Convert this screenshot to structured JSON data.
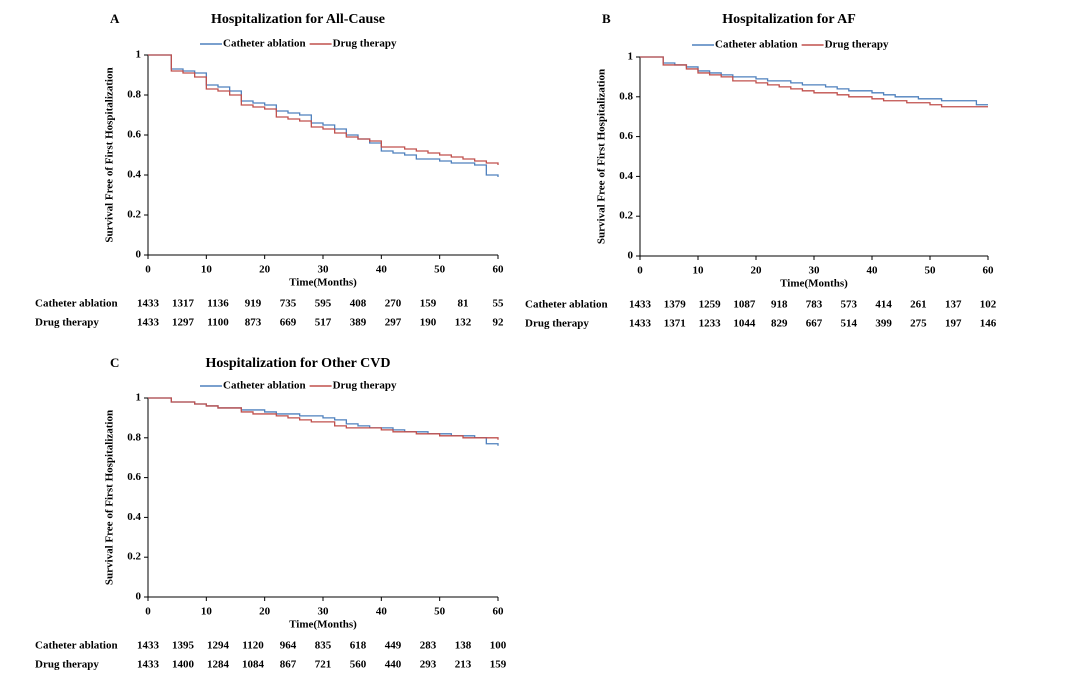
{
  "chart_data": [
    {
      "type": "line",
      "step": true,
      "panel": "A",
      "title": "Hospitalization for All-Cause",
      "x_label": "Time(Months)",
      "y_label": "Survival Free of First Hospitalization",
      "xlim": [
        0,
        60
      ],
      "xticks": [
        0,
        10,
        20,
        30,
        40,
        50,
        60
      ],
      "ylim": [
        0,
        1
      ],
      "yticks": [
        0,
        0.2,
        0.4,
        0.6,
        0.8,
        1
      ],
      "x": [
        0,
        2,
        4,
        6,
        8,
        10,
        12,
        14,
        16,
        18,
        20,
        22,
        24,
        26,
        28,
        30,
        32,
        34,
        36,
        38,
        40,
        42,
        44,
        46,
        48,
        50,
        52,
        54,
        56,
        58,
        60
      ],
      "series": [
        {
          "name": "Catheter ablation",
          "color": "#4f81bd",
          "table_color": "#1f4e8c",
          "values": [
            1,
            1,
            0.93,
            0.92,
            0.91,
            0.85,
            0.84,
            0.82,
            0.77,
            0.76,
            0.75,
            0.72,
            0.71,
            0.7,
            0.66,
            0.65,
            0.63,
            0.6,
            0.58,
            0.56,
            0.52,
            0.51,
            0.5,
            0.48,
            0.48,
            0.47,
            0.46,
            0.46,
            0.45,
            0.4,
            0.39
          ],
          "at_risk": [
            1433,
            1317,
            1136,
            919,
            735,
            595,
            408,
            270,
            159,
            81,
            55
          ]
        },
        {
          "name": "Drug therapy",
          "color": "#c0504d",
          "table_color": "#c00000",
          "values": [
            1,
            1,
            0.92,
            0.91,
            0.89,
            0.83,
            0.82,
            0.8,
            0.75,
            0.74,
            0.73,
            0.69,
            0.68,
            0.67,
            0.64,
            0.63,
            0.61,
            0.59,
            0.58,
            0.57,
            0.54,
            0.54,
            0.53,
            0.52,
            0.51,
            0.5,
            0.49,
            0.48,
            0.47,
            0.46,
            0.45
          ],
          "at_risk": [
            1433,
            1297,
            1100,
            873,
            669,
            517,
            389,
            297,
            190,
            132,
            92
          ]
        }
      ]
    },
    {
      "type": "line",
      "step": true,
      "panel": "B",
      "title": "Hospitalization for AF",
      "x_label": "Time(Months)",
      "y_label": "Survival Free of First Hospitalization",
      "xlim": [
        0,
        60
      ],
      "xticks": [
        0,
        10,
        20,
        30,
        40,
        50,
        60
      ],
      "ylim": [
        0,
        1
      ],
      "yticks": [
        0,
        0.2,
        0.4,
        0.6,
        0.8,
        1
      ],
      "x": [
        0,
        2,
        4,
        6,
        8,
        10,
        12,
        14,
        16,
        18,
        20,
        22,
        24,
        26,
        28,
        30,
        32,
        34,
        36,
        38,
        40,
        42,
        44,
        46,
        48,
        50,
        52,
        54,
        56,
        58,
        60
      ],
      "series": [
        {
          "name": "Catheter ablation",
          "color": "#4f81bd",
          "table_color": "#1f4e8c",
          "values": [
            1,
            1,
            0.97,
            0.96,
            0.95,
            0.93,
            0.92,
            0.91,
            0.9,
            0.9,
            0.89,
            0.88,
            0.88,
            0.87,
            0.86,
            0.86,
            0.85,
            0.84,
            0.83,
            0.83,
            0.82,
            0.81,
            0.8,
            0.8,
            0.79,
            0.79,
            0.78,
            0.78,
            0.78,
            0.76,
            0.76
          ],
          "at_risk": [
            1433,
            1379,
            1259,
            1087,
            918,
            783,
            573,
            414,
            261,
            137,
            102
          ]
        },
        {
          "name": "Drug therapy",
          "color": "#c0504d",
          "table_color": "#c00000",
          "values": [
            1,
            1,
            0.96,
            0.96,
            0.94,
            0.92,
            0.91,
            0.9,
            0.88,
            0.88,
            0.87,
            0.86,
            0.85,
            0.84,
            0.83,
            0.82,
            0.82,
            0.81,
            0.8,
            0.8,
            0.79,
            0.78,
            0.78,
            0.77,
            0.77,
            0.76,
            0.75,
            0.75,
            0.75,
            0.75,
            0.75
          ],
          "at_risk": [
            1433,
            1371,
            1233,
            1044,
            829,
            667,
            514,
            399,
            275,
            197,
            146
          ]
        }
      ]
    },
    {
      "type": "line",
      "step": true,
      "panel": "C",
      "title": "Hospitalization for Other CVD",
      "x_label": "Time(Months)",
      "y_label": "Survival Free of First Hospitalization",
      "xlim": [
        0,
        60
      ],
      "xticks": [
        0,
        10,
        20,
        30,
        40,
        50,
        60
      ],
      "ylim": [
        0,
        1
      ],
      "yticks": [
        0,
        0.2,
        0.4,
        0.6,
        0.8,
        1
      ],
      "x": [
        0,
        2,
        4,
        6,
        8,
        10,
        12,
        14,
        16,
        18,
        20,
        22,
        24,
        26,
        28,
        30,
        32,
        34,
        36,
        38,
        40,
        42,
        44,
        46,
        48,
        50,
        52,
        54,
        56,
        58,
        60
      ],
      "series": [
        {
          "name": "Catheter ablation",
          "color": "#4f81bd",
          "table_color": "#1f4e8c",
          "values": [
            1,
            1,
            0.98,
            0.98,
            0.97,
            0.96,
            0.95,
            0.95,
            0.94,
            0.94,
            0.93,
            0.92,
            0.92,
            0.91,
            0.91,
            0.9,
            0.89,
            0.87,
            0.86,
            0.85,
            0.85,
            0.84,
            0.83,
            0.83,
            0.82,
            0.82,
            0.81,
            0.81,
            0.8,
            0.77,
            0.76
          ],
          "at_risk": [
            1433,
            1395,
            1294,
            1120,
            964,
            835,
            618,
            449,
            283,
            138,
            100
          ]
        },
        {
          "name": "Drug therapy",
          "color": "#c0504d",
          "table_color": "#c00000",
          "values": [
            1,
            1,
            0.98,
            0.98,
            0.97,
            0.96,
            0.95,
            0.95,
            0.93,
            0.92,
            0.92,
            0.91,
            0.9,
            0.89,
            0.88,
            0.88,
            0.86,
            0.85,
            0.85,
            0.85,
            0.84,
            0.83,
            0.83,
            0.82,
            0.82,
            0.81,
            0.81,
            0.8,
            0.8,
            0.8,
            0.79
          ],
          "at_risk": [
            1433,
            1400,
            1284,
            1084,
            867,
            721,
            560,
            440,
            293,
            213,
            159
          ]
        }
      ]
    }
  ]
}
